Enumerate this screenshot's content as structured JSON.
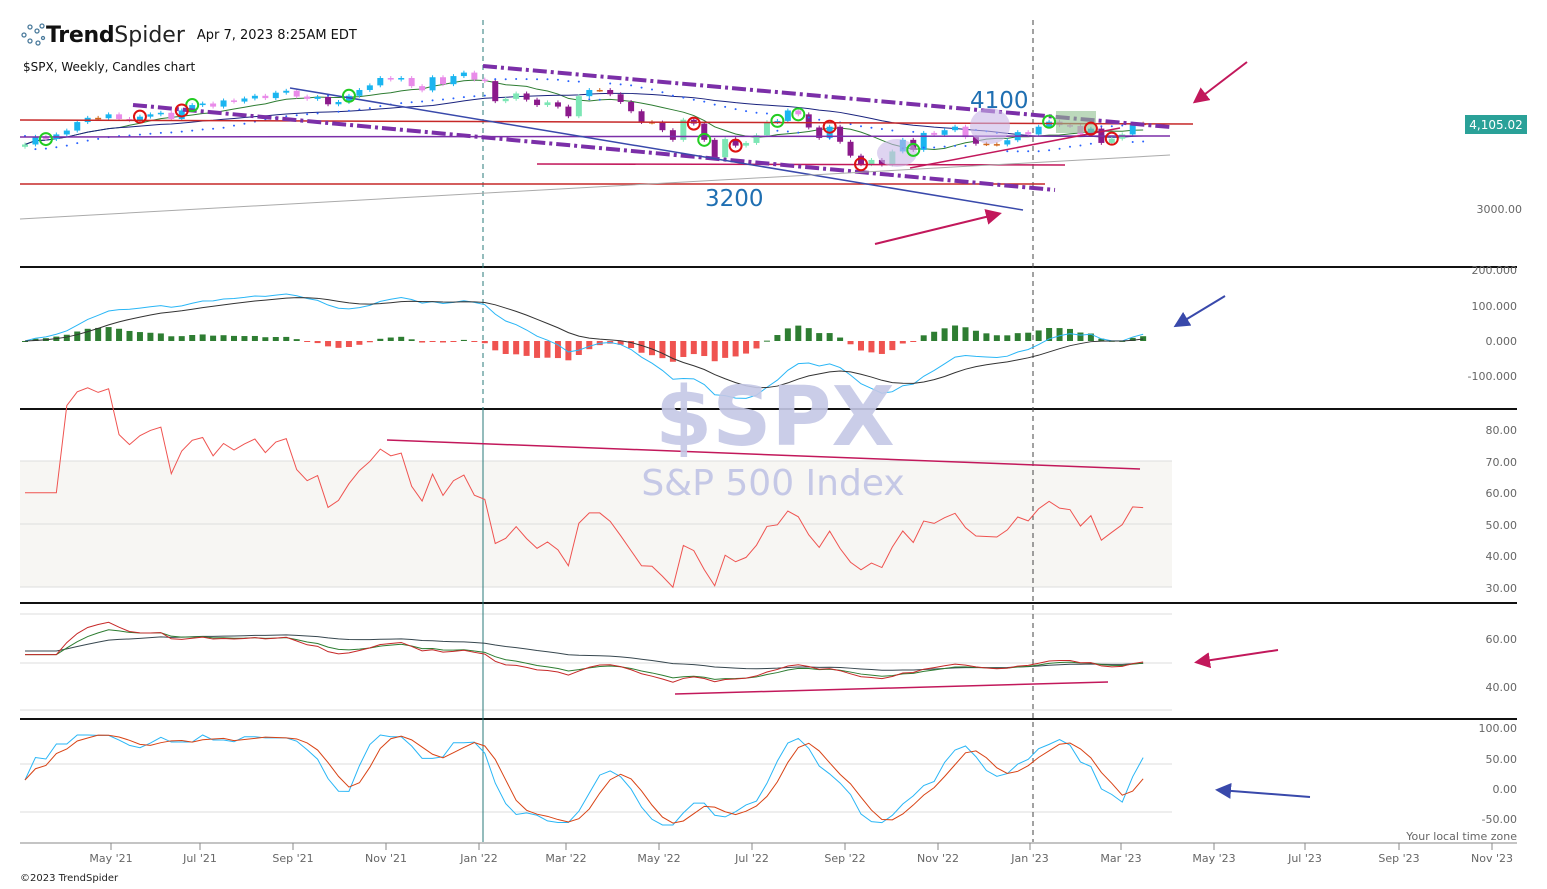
{
  "header": {
    "brand_bold": "Trend",
    "brand_light": "Spider",
    "timestamp": "Apr 7, 2023 8:25AM EDT",
    "subtitle": "$SPX, Weekly, Candles chart"
  },
  "footer": {
    "copyright": "©2023 TrendSpider",
    "timezone": "Your local time zone"
  },
  "watermark": {
    "symbol": "$SPX",
    "name": "S&P 500 Index"
  },
  "chart_data": {
    "type": "candlestick",
    "symbol": "$SPX",
    "interval": "Weekly",
    "last_price_label": "4,105.02",
    "annotations": [
      "4100",
      "3200"
    ],
    "x_ticks": [
      "May '21",
      "Jul '21",
      "Sep '21",
      "Nov '21",
      "Jan '22",
      "Mar '22",
      "May '22",
      "Jul '22",
      "Sep '22",
      "Nov '22",
      "Jan '23",
      "Mar '23",
      "May '23",
      "Jul '23",
      "Sep '23",
      "Nov '23"
    ],
    "price_axis_ticks": [
      "3000.00"
    ],
    "macd_axis_ticks": [
      "200.000",
      "100.000",
      "0.000",
      "-100.000"
    ],
    "rsi_axis_ticks": [
      "80.00",
      "70.00",
      "60.00",
      "50.00",
      "40.00",
      "30.00"
    ],
    "panel3_axis_ticks": [
      "60.00",
      "40.00"
    ],
    "panel4_axis_ticks": [
      "100.00",
      "50.00",
      "0.00",
      "-50.00"
    ],
    "weekly_close": [
      3840,
      3940,
      3910,
      3970,
      4020,
      4130,
      4185,
      4180,
      4230,
      4170,
      4155,
      4200,
      4230,
      4250,
      4170,
      4280,
      4350,
      4370,
      4330,
      4410,
      4395,
      4435,
      4470,
      4440,
      4510,
      4535,
      4460,
      4430,
      4455,
      4360,
      4390,
      4470,
      4545,
      4605,
      4700,
      4680,
      4700,
      4595,
      4540,
      4710,
      4620,
      4725,
      4770,
      4680,
      4660,
      4400,
      4430,
      4500,
      4420,
      4350,
      4385,
      4330,
      4205,
      4465,
      4545,
      4545,
      4490,
      4390,
      4270,
      4130,
      4125,
      4025,
      3900,
      4160,
      4110,
      3900,
      3675,
      3910,
      3825,
      3860,
      3960,
      4130,
      4145,
      4280,
      4230,
      4060,
      3925,
      4070,
      3875,
      3695,
      3585,
      3640,
      3580,
      3750,
      3900,
      3770,
      3990,
      3965,
      4025,
      4070,
      3935,
      3850,
      3845,
      3840,
      3895,
      4000,
      3970,
      4070,
      4135,
      4090,
      4080,
      3970,
      4045,
      3860,
      3915,
      3970,
      4110,
      4105
    ]
  },
  "colors": {
    "up_trend": "#1ab5f0",
    "up": "#7de6b5",
    "down": "#e98be9",
    "down_trend": "#8b1a8b",
    "neutral": "#d2691e",
    "badge": "#2aa198",
    "magenta": "#c2185b",
    "purple": "#7b2fa8",
    "red": "#c62828",
    "blue": "#3949ab"
  }
}
